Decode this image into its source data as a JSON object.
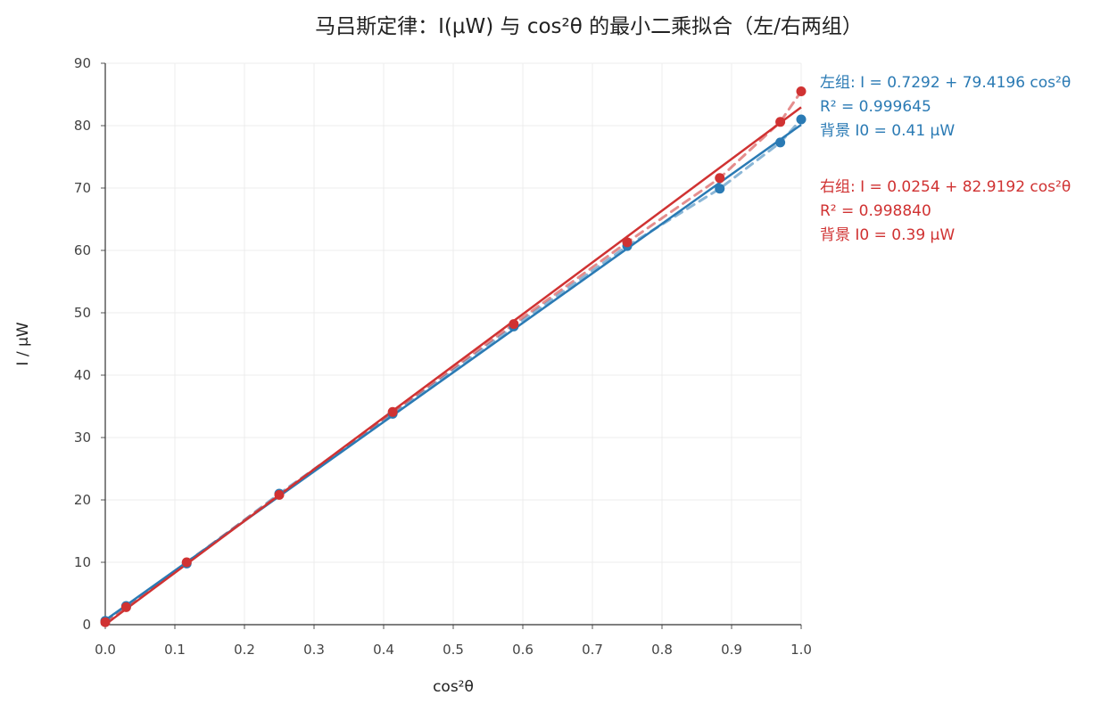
{
  "chart_data": {
    "type": "scatter",
    "title": "马吕斯定律：I(μW) 与 cos²θ 的最小二乘拟合（左/右两组）",
    "xlabel": "cos²θ",
    "ylabel": "I / μW",
    "xlim": [
      0.0,
      1.0
    ],
    "ylim": [
      0,
      90
    ],
    "x_ticks": [
      "0.0",
      "0.1",
      "0.2",
      "0.3",
      "0.4",
      "0.5",
      "0.6",
      "0.7",
      "0.8",
      "0.9",
      "1.0"
    ],
    "y_ticks": [
      "0",
      "10",
      "20",
      "30",
      "40",
      "50",
      "60",
      "70",
      "80",
      "90"
    ],
    "grid": true,
    "legend_placement": "right",
    "series": [
      {
        "name": "左组",
        "color": "#2a7ab4",
        "points": [
          {
            "x": 0.0,
            "y": 0.6
          },
          {
            "x": 0.03,
            "y": 3.0
          },
          {
            "x": 0.117,
            "y": 9.8
          },
          {
            "x": 0.25,
            "y": 21.0
          },
          {
            "x": 0.413,
            "y": 33.8
          },
          {
            "x": 0.587,
            "y": 47.8
          },
          {
            "x": 0.75,
            "y": 60.7
          },
          {
            "x": 0.883,
            "y": 69.9
          },
          {
            "x": 0.97,
            "y": 77.3
          },
          {
            "x": 1.0,
            "y": 81.0
          }
        ],
        "fit": {
          "intercept": 0.7292,
          "slope": 79.4196
        },
        "annotation": [
          "左组: I = 0.7292 + 79.4196 cos²θ",
          "R² = 0.999645",
          "背景 I0 = 0.41 μW"
        ]
      },
      {
        "name": "右组",
        "color": "#d03232",
        "points": [
          {
            "x": 0.0,
            "y": 0.4
          },
          {
            "x": 0.03,
            "y": 2.8
          },
          {
            "x": 0.117,
            "y": 10.0
          },
          {
            "x": 0.25,
            "y": 20.8
          },
          {
            "x": 0.413,
            "y": 34.1
          },
          {
            "x": 0.587,
            "y": 48.2
          },
          {
            "x": 0.75,
            "y": 61.3
          },
          {
            "x": 0.883,
            "y": 71.6
          },
          {
            "x": 0.97,
            "y": 80.6
          },
          {
            "x": 1.0,
            "y": 85.5
          }
        ],
        "fit": {
          "intercept": 0.0254,
          "slope": 82.9192
        },
        "annotation": [
          "右组: I = 0.0254 + 82.9192 cos²θ",
          "R² = 0.998840",
          "背景 I0 = 0.39 μW"
        ]
      }
    ]
  }
}
